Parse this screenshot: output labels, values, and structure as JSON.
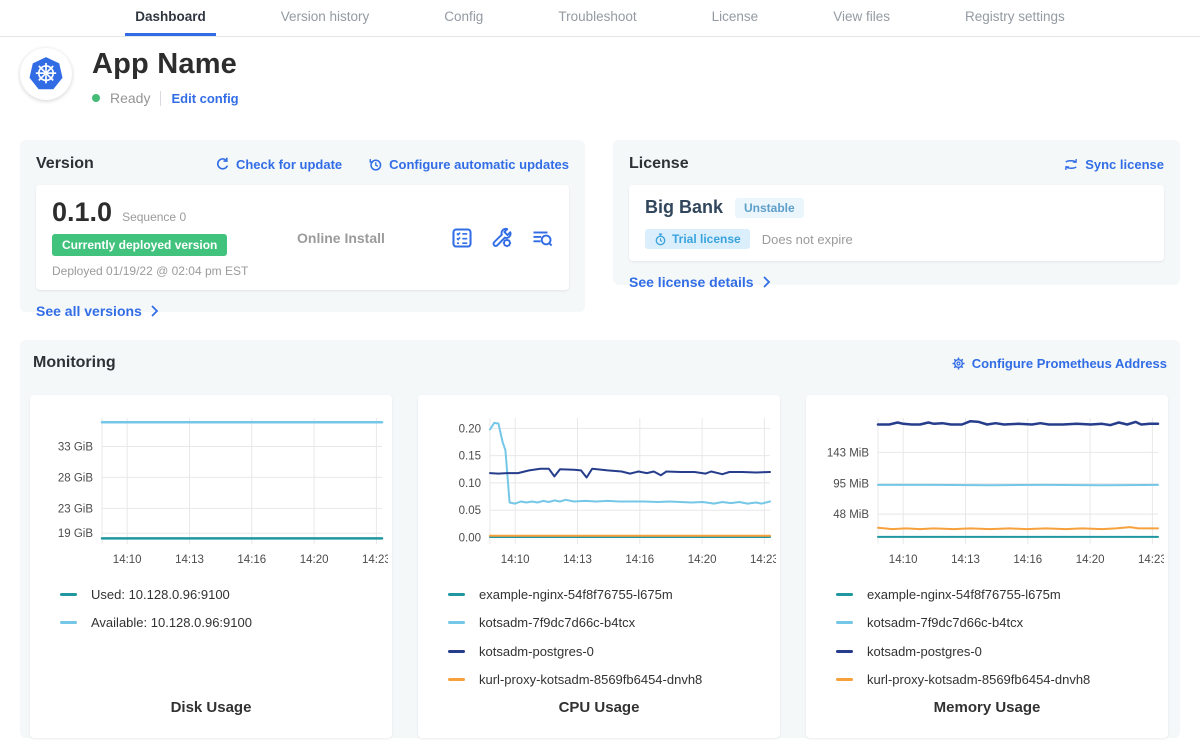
{
  "colors": {
    "accent": "#326de6",
    "status_green": "#44bb77",
    "deployed_badge_green": "#41c37d"
  },
  "nav": {
    "tabs": [
      {
        "label": "Dashboard",
        "active": true
      },
      {
        "label": "Version history",
        "active": false
      },
      {
        "label": "Config",
        "active": false
      },
      {
        "label": "Troubleshoot",
        "active": false
      },
      {
        "label": "License",
        "active": false
      },
      {
        "label": "View files",
        "active": false
      },
      {
        "label": "Registry settings",
        "active": false
      }
    ]
  },
  "app": {
    "name": "App Name",
    "status": "Ready",
    "edit_config": "Edit config"
  },
  "version": {
    "title": "Version",
    "check_update": "Check for update",
    "configure_updates": "Configure automatic updates",
    "number": "0.1.0",
    "sequence": "Sequence 0",
    "deployed_badge": "Currently deployed version",
    "deployed_at": "Deployed 01/19/22 @ 02:04 pm EST",
    "install_type": "Online Install",
    "see_all": "See all versions"
  },
  "license": {
    "title": "License",
    "sync": "Sync license",
    "name": "Big Bank",
    "channel": "Unstable",
    "trial_badge": "Trial license",
    "expiry": "Does not expire",
    "details": "See license details"
  },
  "monitoring": {
    "title": "Monitoring",
    "configure": "Configure Prometheus Address",
    "chart_data": [
      {
        "type": "line",
        "title": "Disk Usage",
        "x_tick_labels": [
          "14:10",
          "14:13",
          "14:16",
          "14:20",
          "14:23"
        ],
        "y_ticks": [
          {
            "label": "33 GiB",
            "value": 33
          },
          {
            "label": "28 GiB",
            "value": 28
          },
          {
            "label": "23 GiB",
            "value": 23
          },
          {
            "label": "19 GiB",
            "value": 19
          }
        ],
        "ylim": [
          17.25,
          37.6
        ],
        "series": [
          {
            "name": "Used: 10.128.0.96:9100",
            "color": "#2097a0",
            "w": 2.5,
            "points": [
              [
                0,
                18.15
              ],
              [
                1,
                18.15
              ]
            ]
          },
          {
            "name": "Available: 10.128.0.96:9100",
            "color": "#75c7e8",
            "w": 2.5,
            "points": [
              [
                0,
                36.9
              ],
              [
                1,
                36.9
              ]
            ]
          }
        ]
      },
      {
        "type": "line",
        "title": "CPU Usage",
        "x_tick_labels": [
          "14:10",
          "14:13",
          "14:16",
          "14:20",
          "14:23"
        ],
        "y_ticks": [
          {
            "label": "0.20",
            "value": 0.2
          },
          {
            "label": "0.15",
            "value": 0.15
          },
          {
            "label": "0.10",
            "value": 0.1
          },
          {
            "label": "0.05",
            "value": 0.05
          },
          {
            "label": "0.00",
            "value": 0.0
          }
        ],
        "ylim": [
          -0.012,
          0.219
        ],
        "series": [
          {
            "name": "example-nginx-54f8f76755-l675m",
            "color": "#2097a0",
            "w": 2,
            "points": [
              [
                0,
                0.0008
              ],
              [
                1,
                0.0008
              ]
            ]
          },
          {
            "name": "kotsadm-7f9dc7d66c-b4tcx",
            "color": "#75c7e8",
            "w": 2,
            "points": [
              [
                0,
                0.198
              ],
              [
                0.015,
                0.21
              ],
              [
                0.03,
                0.209
              ],
              [
                0.045,
                0.175
              ],
              [
                0.055,
                0.16
              ],
              [
                0.07,
                0.064
              ],
              [
                0.09,
                0.062
              ],
              [
                0.11,
                0.066
              ],
              [
                0.13,
                0.064
              ],
              [
                0.15,
                0.066
              ],
              [
                0.17,
                0.064
              ],
              [
                0.19,
                0.067
              ],
              [
                0.21,
                0.065
              ],
              [
                0.23,
                0.068
              ],
              [
                0.25,
                0.066
              ],
              [
                0.27,
                0.069
              ],
              [
                0.3,
                0.066
              ],
              [
                0.34,
                0.067
              ],
              [
                0.38,
                0.066
              ],
              [
                0.42,
                0.067
              ],
              [
                0.46,
                0.066
              ],
              [
                0.5,
                0.066
              ],
              [
                0.55,
                0.066
              ],
              [
                0.6,
                0.065
              ],
              [
                0.64,
                0.066
              ],
              [
                0.68,
                0.065
              ],
              [
                0.72,
                0.064
              ],
              [
                0.76,
                0.065
              ],
              [
                0.8,
                0.062
              ],
              [
                0.83,
                0.065
              ],
              [
                0.86,
                0.063
              ],
              [
                0.89,
                0.065
              ],
              [
                0.92,
                0.062
              ],
              [
                0.95,
                0.064
              ],
              [
                0.97,
                0.062
              ],
              [
                1,
                0.066
              ]
            ]
          },
          {
            "name": "kotsadm-postgres-0",
            "color": "#263d8c",
            "w": 2,
            "points": [
              [
                0,
                0.118
              ],
              [
                0.03,
                0.117
              ],
              [
                0.06,
                0.118
              ],
              [
                0.1,
                0.118
              ],
              [
                0.14,
                0.123
              ],
              [
                0.18,
                0.126
              ],
              [
                0.21,
                0.126
              ],
              [
                0.23,
                0.112
              ],
              [
                0.25,
                0.125
              ],
              [
                0.3,
                0.124
              ],
              [
                0.325,
                0.123
              ],
              [
                0.345,
                0.11
              ],
              [
                0.365,
                0.126
              ],
              [
                0.42,
                0.123
              ],
              [
                0.47,
                0.121
              ],
              [
                0.5,
                0.117
              ],
              [
                0.53,
                0.121
              ],
              [
                0.56,
                0.118
              ],
              [
                0.585,
                0.121
              ],
              [
                0.61,
                0.114
              ],
              [
                0.63,
                0.121
              ],
              [
                0.68,
                0.12
              ],
              [
                0.73,
                0.12
              ],
              [
                0.77,
                0.117
              ],
              [
                0.79,
                0.121
              ],
              [
                0.83,
                0.116
              ],
              [
                0.855,
                0.12
              ],
              [
                0.9,
                0.12
              ],
              [
                0.95,
                0.119
              ],
              [
                1,
                0.12
              ]
            ]
          },
          {
            "name": "kurl-proxy-kotsadm-8569fb6454-dnvh8",
            "color": "#f7a13d",
            "w": 2,
            "points": [
              [
                0,
                0.003
              ],
              [
                1,
                0.003
              ]
            ]
          }
        ]
      },
      {
        "type": "line",
        "title": "Memory Usage",
        "x_tick_labels": [
          "14:10",
          "14:13",
          "14:16",
          "14:20",
          "14:23"
        ],
        "y_ticks": [
          {
            "label": "143 MiB",
            "value": 143
          },
          {
            "label": "95 MiB",
            "value": 95
          },
          {
            "label": "48 MiB",
            "value": 48
          }
        ],
        "ylim": [
          2,
          196
        ],
        "series": [
          {
            "name": "example-nginx-54f8f76755-l675m",
            "color": "#2097a0",
            "w": 2,
            "points": [
              [
                0,
                13
              ],
              [
                1,
                13
              ]
            ]
          },
          {
            "name": "kotsadm-7f9dc7d66c-b4tcx",
            "color": "#75c7e8",
            "w": 2,
            "points": [
              [
                0,
                93
              ],
              [
                0.2,
                93
              ],
              [
                0.4,
                92.5
              ],
              [
                0.6,
                93
              ],
              [
                0.8,
                92.5
              ],
              [
                1,
                93
              ]
            ]
          },
          {
            "name": "kotsadm-postgres-0",
            "color": "#263d8c",
            "w": 2.5,
            "points": [
              [
                0,
                186
              ],
              [
                0.04,
                186
              ],
              [
                0.07,
                189
              ],
              [
                0.09,
                187
              ],
              [
                0.12,
                186
              ],
              [
                0.15,
                186
              ],
              [
                0.18,
                189
              ],
              [
                0.2,
                187
              ],
              [
                0.23,
                188
              ],
              [
                0.26,
                186
              ],
              [
                0.3,
                186
              ],
              [
                0.33,
                191
              ],
              [
                0.36,
                190
              ],
              [
                0.39,
                186
              ],
              [
                0.42,
                188
              ],
              [
                0.45,
                186
              ],
              [
                0.5,
                187
              ],
              [
                0.55,
                186
              ],
              [
                0.58,
                188
              ],
              [
                0.61,
                186
              ],
              [
                0.66,
                186
              ],
              [
                0.71,
                187
              ],
              [
                0.76,
                186
              ],
              [
                0.8,
                187
              ],
              [
                0.83,
                185
              ],
              [
                0.86,
                189
              ],
              [
                0.89,
                186
              ],
              [
                0.92,
                190
              ],
              [
                0.94,
                186
              ],
              [
                0.97,
                187
              ],
              [
                1,
                187
              ]
            ]
          },
          {
            "name": "kurl-proxy-kotsadm-8569fb6454-dnvh8",
            "color": "#f7a13d",
            "w": 2,
            "points": [
              [
                0,
                27
              ],
              [
                0.05,
                25
              ],
              [
                0.1,
                26
              ],
              [
                0.15,
                25
              ],
              [
                0.2,
                26
              ],
              [
                0.27,
                25
              ],
              [
                0.33,
                26
              ],
              [
                0.4,
                25
              ],
              [
                0.47,
                26
              ],
              [
                0.53,
                25
              ],
              [
                0.6,
                26
              ],
              [
                0.67,
                25
              ],
              [
                0.73,
                26
              ],
              [
                0.8,
                25
              ],
              [
                0.85,
                26
              ],
              [
                0.9,
                28
              ],
              [
                0.93,
                26
              ],
              [
                1,
                26
              ]
            ]
          }
        ]
      }
    ]
  }
}
